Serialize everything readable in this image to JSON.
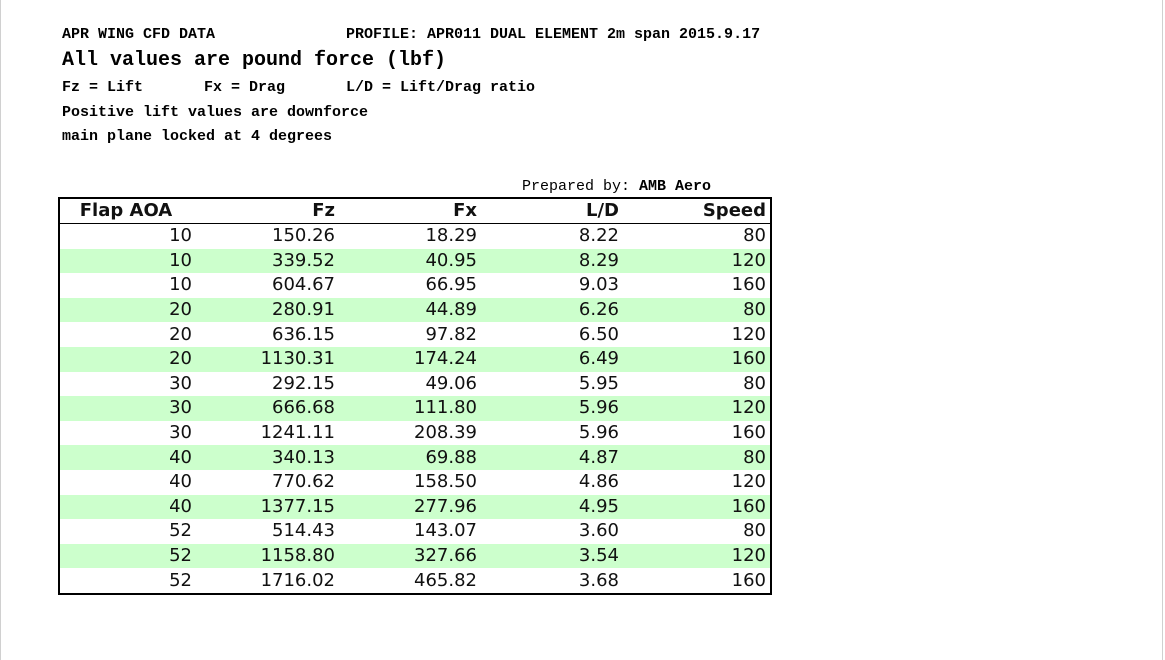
{
  "header": {
    "title": "APR WING CFD DATA",
    "profile": "PROFILE: APR011 DUAL ELEMENT 2m span 2015.9.17",
    "units": "All values are pound force (lbf)",
    "legend": [
      "Fz = Lift",
      "Fx = Drag",
      "L/D = Lift/Drag ratio"
    ],
    "note1": "Positive lift values are downforce",
    "note2": "main plane locked at 4 degrees",
    "prepared_label": "Prepared by:",
    "prepared_by": "AMB Aero"
  },
  "table": {
    "columns": [
      "Flap AOA",
      "Fz",
      "Fx",
      "L/D",
      "Speed"
    ],
    "rows": [
      [
        "10",
        "150.26",
        "18.29",
        "8.22",
        "80"
      ],
      [
        "10",
        "339.52",
        "40.95",
        "8.29",
        "120"
      ],
      [
        "10",
        "604.67",
        "66.95",
        "9.03",
        "160"
      ],
      [
        "20",
        "280.91",
        "44.89",
        "6.26",
        "80"
      ],
      [
        "20",
        "636.15",
        "97.82",
        "6.50",
        "120"
      ],
      [
        "20",
        "1130.31",
        "174.24",
        "6.49",
        "160"
      ],
      [
        "30",
        "292.15",
        "49.06",
        "5.95",
        "80"
      ],
      [
        "30",
        "666.68",
        "111.80",
        "5.96",
        "120"
      ],
      [
        "30",
        "1241.11",
        "208.39",
        "5.96",
        "160"
      ],
      [
        "40",
        "340.13",
        "69.88",
        "4.87",
        "80"
      ],
      [
        "40",
        "770.62",
        "158.50",
        "4.86",
        "120"
      ],
      [
        "40",
        "1377.15",
        "277.96",
        "4.95",
        "160"
      ],
      [
        "52",
        "514.43",
        "143.07",
        "3.60",
        "80"
      ],
      [
        "52",
        "1158.80",
        "327.66",
        "3.54",
        "120"
      ],
      [
        "52",
        "1716.02",
        "465.82",
        "3.68",
        "160"
      ]
    ]
  }
}
